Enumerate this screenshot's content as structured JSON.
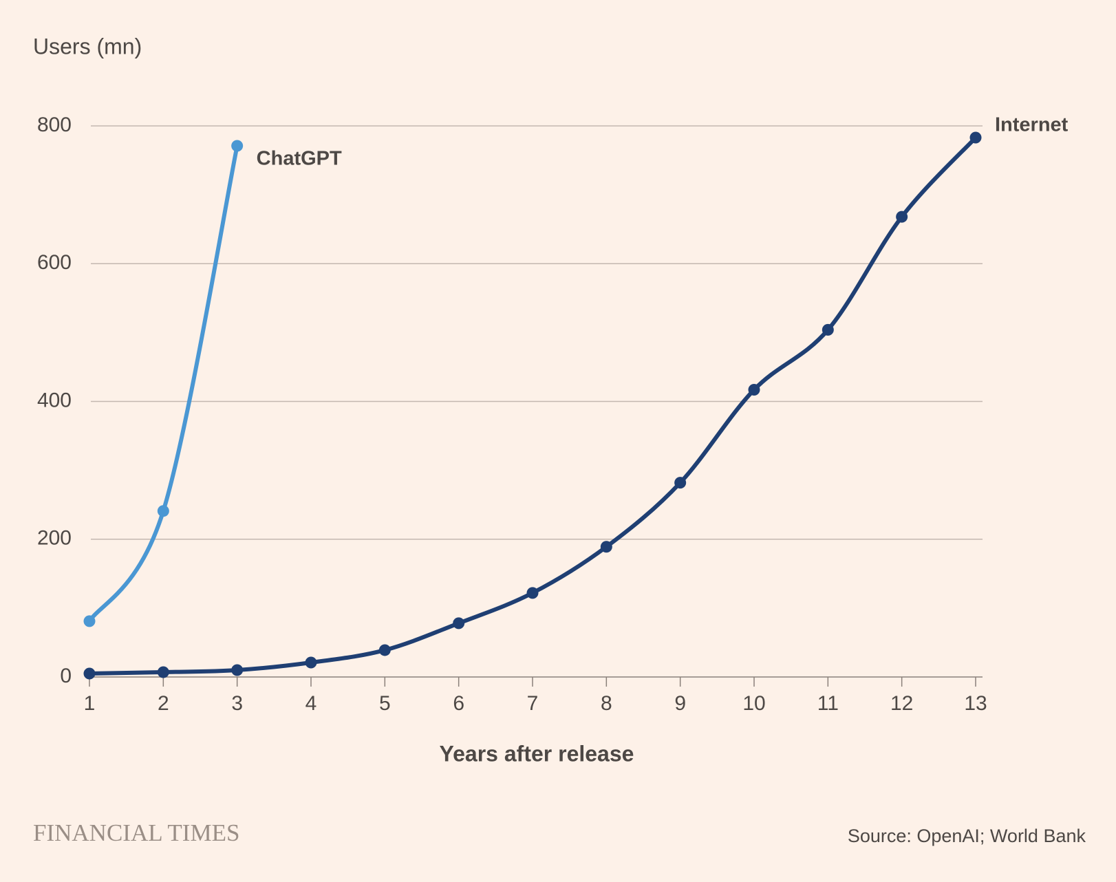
{
  "chart_data": {
    "type": "line",
    "y_label": "Users (mn)",
    "x_label": "Years after release",
    "brand": "FINANCIAL TIMES",
    "source": "Source: OpenAI; World Bank",
    "xlim": [
      1,
      13
    ],
    "xticks": [
      1,
      2,
      3,
      4,
      5,
      6,
      7,
      8,
      9,
      10,
      11,
      12,
      13
    ],
    "ylim": [
      0,
      800
    ],
    "yticks": [
      0,
      200,
      400,
      600,
      800
    ],
    "grid": true,
    "series": [
      {
        "name": "ChatGPT",
        "color": "#4a97d3",
        "x": [
          1,
          2,
          3
        ],
        "values": [
          81,
          241,
          771
        ]
      },
      {
        "name": "Internet",
        "color": "#1f3f73",
        "x": [
          1,
          2,
          3,
          4,
          5,
          6,
          7,
          8,
          9,
          10,
          11,
          12,
          13
        ],
        "values": [
          5,
          7,
          10,
          21,
          39,
          78,
          122,
          189,
          282,
          417,
          504,
          668,
          783
        ]
      }
    ]
  }
}
